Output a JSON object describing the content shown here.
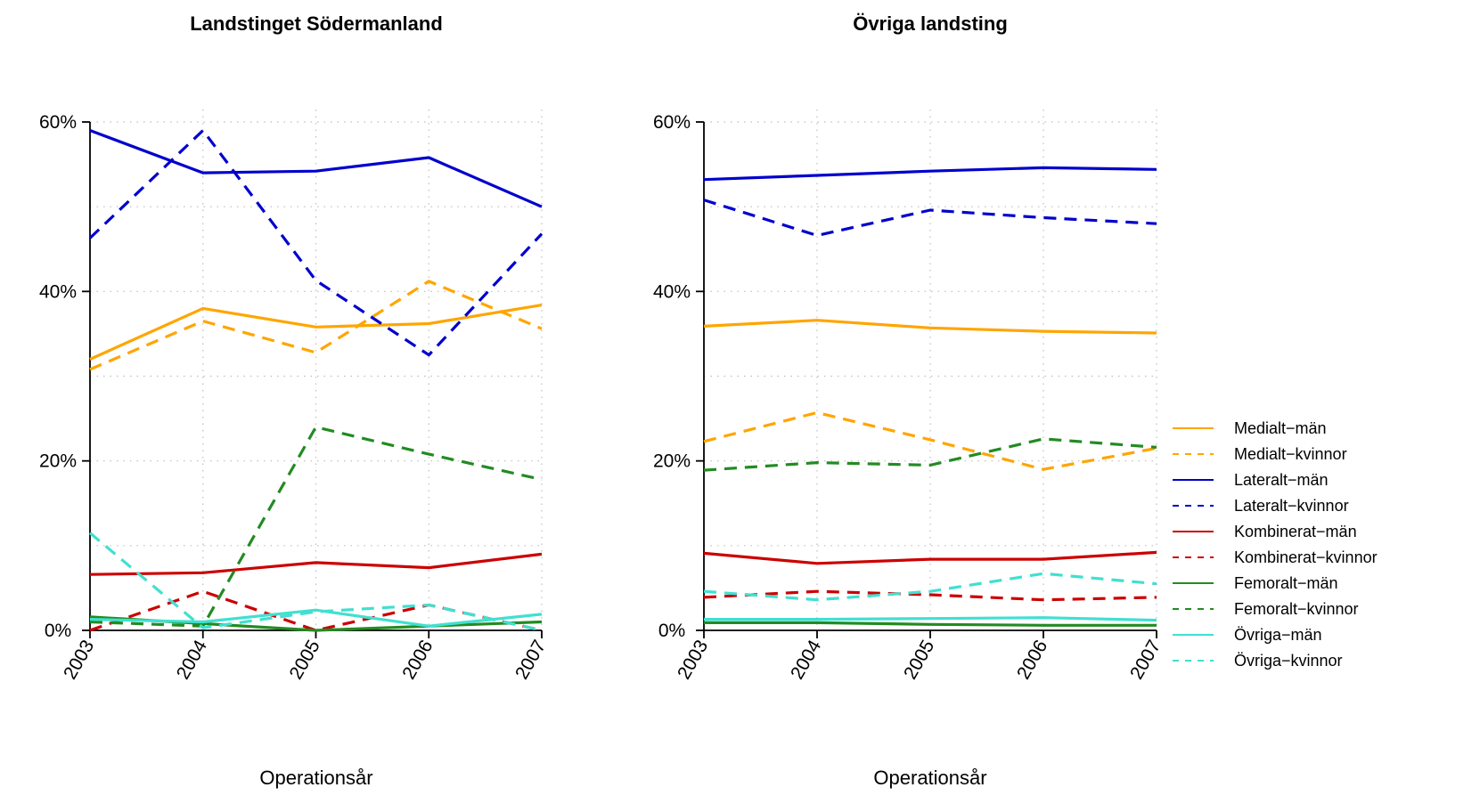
{
  "chart_data": [
    {
      "type": "line",
      "title": "Landstinget Södermanland",
      "xlabel": "Operationsår",
      "ylabel": "",
      "x": [
        "2003",
        "2004",
        "2005",
        "2006",
        "2007"
      ],
      "ylim": [
        0,
        60
      ],
      "yticks": [
        "0%",
        "20%",
        "40%",
        "60%"
      ],
      "series": [
        {
          "name": "Medialt−män",
          "values": [
            32,
            38,
            35.8,
            36.2,
            38.4
          ],
          "color": "#FFA500",
          "dash": "solid"
        },
        {
          "name": "Medialt−kvinnor",
          "values": [
            30.8,
            36.5,
            32.8,
            41.2,
            35.6
          ],
          "color": "#FFA500",
          "dash": "dashed"
        },
        {
          "name": "Lateralt−män",
          "values": [
            59,
            54,
            54.2,
            55.8,
            50
          ],
          "color": "#0000CD",
          "dash": "solid"
        },
        {
          "name": "Lateralt−kvinnor",
          "values": [
            46.3,
            59,
            41.3,
            32.5,
            46.8
          ],
          "color": "#0000CD",
          "dash": "dashed"
        },
        {
          "name": "Kombinerat−män",
          "values": [
            6.6,
            6.8,
            8,
            7.4,
            9
          ],
          "color": "#CC0000",
          "dash": "solid"
        },
        {
          "name": "Kombinerat−kvinnor",
          "values": [
            0,
            4.6,
            0,
            3,
            0
          ],
          "color": "#CC0000",
          "dash": "dashed"
        },
        {
          "name": "Femoralt−män",
          "values": [
            1.6,
            0.8,
            0,
            0.5,
            1
          ],
          "color": "#228B22",
          "dash": "solid"
        },
        {
          "name": "Femoralt−kvinnor",
          "values": [
            1,
            0.5,
            24,
            20.8,
            17.8
          ],
          "color": "#228B22",
          "dash": "dashed"
        },
        {
          "name": "Övriga−män",
          "values": [
            1.3,
            1,
            2.4,
            0.5,
            1.9
          ],
          "color": "#40E0D0",
          "dash": "solid"
        },
        {
          "name": "Övriga−kvinnor",
          "values": [
            11.5,
            0.3,
            2.2,
            3,
            0
          ],
          "color": "#40E0D0",
          "dash": "dashed"
        }
      ]
    },
    {
      "type": "line",
      "title": "Övriga landsting",
      "xlabel": "Operationsår",
      "ylabel": "",
      "x": [
        "2003",
        "2004",
        "2005",
        "2006",
        "2007"
      ],
      "ylim": [
        0,
        60
      ],
      "yticks": [
        "0%",
        "20%",
        "40%",
        "60%"
      ],
      "series": [
        {
          "name": "Medialt−män",
          "values": [
            35.9,
            36.6,
            35.7,
            35.3,
            35.1
          ],
          "color": "#FFA500",
          "dash": "solid"
        },
        {
          "name": "Medialt−kvinnor",
          "values": [
            22.3,
            25.7,
            22.5,
            19,
            21.5
          ],
          "color": "#FFA500",
          "dash": "dashed"
        },
        {
          "name": "Lateralt−män",
          "values": [
            53.2,
            53.7,
            54.2,
            54.6,
            54.4
          ],
          "color": "#0000CD",
          "dash": "solid"
        },
        {
          "name": "Lateralt−kvinnor",
          "values": [
            50.8,
            46.6,
            49.6,
            48.7,
            48
          ],
          "color": "#0000CD",
          "dash": "dashed"
        },
        {
          "name": "Kombinerat−män",
          "values": [
            9.1,
            7.9,
            8.4,
            8.4,
            9.2
          ],
          "color": "#CC0000",
          "dash": "solid"
        },
        {
          "name": "Kombinerat−kvinnor",
          "values": [
            3.9,
            4.6,
            4.2,
            3.6,
            3.9
          ],
          "color": "#CC0000",
          "dash": "dashed"
        },
        {
          "name": "Femoralt−män",
          "values": [
            0.9,
            0.9,
            0.7,
            0.6,
            0.6
          ],
          "color": "#228B22",
          "dash": "solid"
        },
        {
          "name": "Femoralt−kvinnor",
          "values": [
            18.9,
            19.8,
            19.5,
            22.6,
            21.6
          ],
          "color": "#228B22",
          "dash": "dashed"
        },
        {
          "name": "Övriga−män",
          "values": [
            1.3,
            1.3,
            1.4,
            1.5,
            1.2
          ],
          "color": "#40E0D0",
          "dash": "solid"
        },
        {
          "name": "Övriga−kvinnor",
          "values": [
            4.6,
            3.6,
            4.6,
            6.7,
            5.5
          ],
          "color": "#40E0D0",
          "dash": "dashed"
        }
      ]
    }
  ],
  "legend": {
    "placement": "right",
    "items": [
      {
        "name": "Medialt−män",
        "color": "#FFA500",
        "dash": "solid"
      },
      {
        "name": "Medialt−kvinnor",
        "color": "#FFA500",
        "dash": "dashed"
      },
      {
        "name": "Lateralt−män",
        "color": "#0000CD",
        "dash": "solid"
      },
      {
        "name": "Lateralt−kvinnor",
        "color": "#0000CD",
        "dash": "dashed"
      },
      {
        "name": "Kombinerat−män",
        "color": "#CC0000",
        "dash": "solid"
      },
      {
        "name": "Kombinerat−kvinnor",
        "color": "#CC0000",
        "dash": "dashed"
      },
      {
        "name": "Femoralt−män",
        "color": "#228B22",
        "dash": "solid"
      },
      {
        "name": "Femoralt−kvinnor",
        "color": "#228B22",
        "dash": "dashed"
      },
      {
        "name": "Övriga−män",
        "color": "#40E0D0",
        "dash": "solid"
      },
      {
        "name": "Övriga−kvinnor",
        "color": "#40E0D0",
        "dash": "dashed"
      }
    ]
  }
}
